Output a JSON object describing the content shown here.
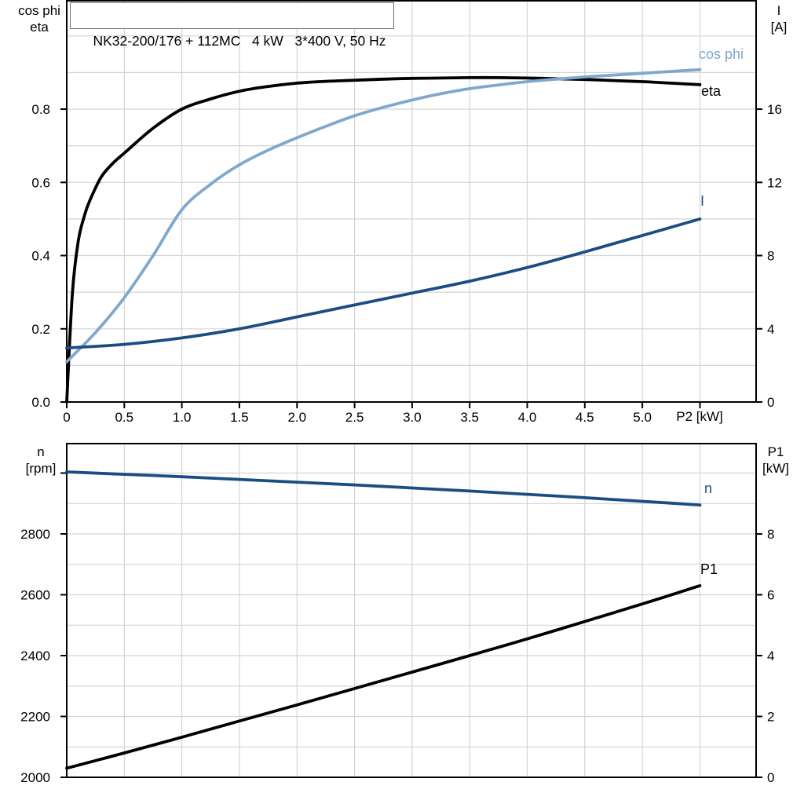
{
  "title": "NK32-200/176 + 112MC   4 kW   3*400 V, 50 Hz",
  "labels": {
    "cos_phi": "cos phi",
    "eta": "eta",
    "current": "I",
    "speed": "n",
    "p1": "P1"
  },
  "top_chart": {
    "left_header_line1": "cos phi",
    "left_header_line2": "eta",
    "right_header_line1": "I",
    "right_header_line2": "[A]",
    "x_label": "P2 [kW]"
  },
  "bottom_chart": {
    "left_header_line1": "n",
    "left_header_line2": "[rpm]",
    "right_header_line1": "P1",
    "right_header_line2": "[kW]"
  },
  "colors": {
    "curve_black": "#000000",
    "curve_dark_blue": "#1c4d82",
    "curve_light_blue": "#7fa8cc",
    "grid": "#d4d4d4",
    "axis": "#000000",
    "title_border": "#6e6e6e"
  },
  "chart_data": [
    {
      "id": "top",
      "type": "line",
      "x_axis": {
        "label": "P2 [kW]",
        "min": 0,
        "max": 5.99,
        "grid_step": 0.5,
        "ticks": [
          {
            "v": 0,
            "label": "0"
          },
          {
            "v": 0.5,
            "label": "0.5"
          },
          {
            "v": 1,
            "label": "1.0"
          },
          {
            "v": 1.5,
            "label": "1.5"
          },
          {
            "v": 2,
            "label": "2.0"
          },
          {
            "v": 2.5,
            "label": "2.5"
          },
          {
            "v": 3,
            "label": "3.0"
          },
          {
            "v": 3.5,
            "label": "3.5"
          },
          {
            "v": 4,
            "label": "4.0"
          },
          {
            "v": 4.5,
            "label": "4.5"
          },
          {
            "v": 5,
            "label": "5.0"
          },
          {
            "v": 5.5,
            "label": ""
          }
        ]
      },
      "left_axis": {
        "header": "cos phi / eta",
        "min": 0,
        "max": 1.096,
        "grid_step": 0.1,
        "ticks": [
          {
            "v": 0.0,
            "label": "0.0"
          },
          {
            "v": 0.2,
            "label": "0.2"
          },
          {
            "v": 0.4,
            "label": "0.4"
          },
          {
            "v": 0.6,
            "label": "0.6"
          },
          {
            "v": 0.8,
            "label": "0.8"
          }
        ]
      },
      "right_axis": {
        "header": "I [A]",
        "min": 0,
        "max": 21.92,
        "ticks": [
          {
            "v": 0,
            "label": "0"
          },
          {
            "v": 4,
            "label": "4"
          },
          {
            "v": 8,
            "label": "8"
          },
          {
            "v": 12,
            "label": "12"
          },
          {
            "v": 16,
            "label": "16"
          }
        ]
      },
      "series": [
        {
          "name": "eta",
          "axis": "left",
          "color": "curve_black",
          "points": [
            [
              0,
              0
            ],
            [
              0.05,
              0.3
            ],
            [
              0.1,
              0.44
            ],
            [
              0.15,
              0.505
            ],
            [
              0.2,
              0.55
            ],
            [
              0.3,
              0.615
            ],
            [
              0.4,
              0.652
            ],
            [
              0.5,
              0.68
            ],
            [
              0.75,
              0.748
            ],
            [
              1.0,
              0.8
            ],
            [
              1.25,
              0.828
            ],
            [
              1.5,
              0.849
            ],
            [
              1.75,
              0.862
            ],
            [
              2.0,
              0.871
            ],
            [
              2.25,
              0.876
            ],
            [
              2.5,
              0.879
            ],
            [
              2.75,
              0.882
            ],
            [
              3.0,
              0.884
            ],
            [
              3.25,
              0.885
            ],
            [
              3.5,
              0.886
            ],
            [
              3.75,
              0.886
            ],
            [
              4.0,
              0.885
            ],
            [
              4.25,
              0.883
            ],
            [
              4.5,
              0.881
            ],
            [
              4.75,
              0.878
            ],
            [
              5.0,
              0.875
            ],
            [
              5.25,
              0.871
            ],
            [
              5.5,
              0.867
            ]
          ]
        },
        {
          "name": "cos phi",
          "axis": "left",
          "color": "curve_light_blue",
          "points": [
            [
              0,
              0.11
            ],
            [
              0.25,
              0.19
            ],
            [
              0.5,
              0.285
            ],
            [
              0.75,
              0.4
            ],
            [
              1.0,
              0.525
            ],
            [
              1.25,
              0.595
            ],
            [
              1.5,
              0.648
            ],
            [
              1.75,
              0.688
            ],
            [
              2.0,
              0.722
            ],
            [
              2.25,
              0.753
            ],
            [
              2.5,
              0.782
            ],
            [
              2.75,
              0.805
            ],
            [
              3.0,
              0.825
            ],
            [
              3.25,
              0.842
            ],
            [
              3.5,
              0.856
            ],
            [
              3.75,
              0.866
            ],
            [
              4.0,
              0.875
            ],
            [
              4.25,
              0.882
            ],
            [
              4.5,
              0.888
            ],
            [
              4.75,
              0.893
            ],
            [
              5.0,
              0.898
            ],
            [
              5.25,
              0.903
            ],
            [
              5.5,
              0.908
            ]
          ]
        },
        {
          "name": "I",
          "axis": "right",
          "color": "curve_dark_blue",
          "points": [
            [
              0,
              2.95
            ],
            [
              0.5,
              3.15
            ],
            [
              1.0,
              3.5
            ],
            [
              1.5,
              4.0
            ],
            [
              2.0,
              4.65
            ],
            [
              2.5,
              5.3
            ],
            [
              3.0,
              5.95
            ],
            [
              3.5,
              6.6
            ],
            [
              4.0,
              7.35
            ],
            [
              4.5,
              8.2
            ],
            [
              5.0,
              9.1
            ],
            [
              5.5,
              10.0
            ]
          ]
        }
      ]
    },
    {
      "id": "bottom",
      "type": "line",
      "x_axis": {
        "label": "",
        "min": 0,
        "max": 5.99,
        "grid_step": 0.5,
        "ticks": []
      },
      "left_axis": {
        "header": "n [rpm]",
        "min": 2000,
        "max": 3096.8,
        "grid_step": 100,
        "ticks": [
          {
            "v": 2000,
            "label": "2000"
          },
          {
            "v": 2200,
            "label": "2200"
          },
          {
            "v": 2400,
            "label": "2400"
          },
          {
            "v": 2600,
            "label": "2600"
          },
          {
            "v": 2800,
            "label": "2800"
          },
          {
            "v": 3000,
            "label": ""
          }
        ]
      },
      "right_axis": {
        "header": "P1 [kW]",
        "min": 0,
        "max": 10.97,
        "ticks": [
          {
            "v": 0,
            "label": "0"
          },
          {
            "v": 2,
            "label": "2"
          },
          {
            "v": 4,
            "label": "4"
          },
          {
            "v": 6,
            "label": "6"
          },
          {
            "v": 8,
            "label": "8"
          }
        ]
      },
      "series": [
        {
          "name": "n",
          "axis": "left",
          "color": "curve_dark_blue",
          "points": [
            [
              0,
              3004
            ],
            [
              0.5,
              2996
            ],
            [
              1.0,
              2988
            ],
            [
              1.5,
              2979
            ],
            [
              2.0,
              2970
            ],
            [
              2.5,
              2961
            ],
            [
              3.0,
              2951
            ],
            [
              3.5,
              2941
            ],
            [
              4.0,
              2930
            ],
            [
              4.5,
              2919
            ],
            [
              5.0,
              2907
            ],
            [
              5.5,
              2895
            ]
          ]
        },
        {
          "name": "P1",
          "axis": "right",
          "color": "curve_black",
          "points": [
            [
              0,
              0.3
            ],
            [
              0.5,
              0.8
            ],
            [
              1.0,
              1.32
            ],
            [
              1.5,
              1.85
            ],
            [
              2.0,
              2.38
            ],
            [
              2.5,
              2.92
            ],
            [
              3.0,
              3.46
            ],
            [
              3.5,
              4.0
            ],
            [
              4.0,
              4.55
            ],
            [
              4.5,
              5.12
            ],
            [
              5.0,
              5.7
            ],
            [
              5.5,
              6.3
            ]
          ]
        }
      ]
    }
  ]
}
